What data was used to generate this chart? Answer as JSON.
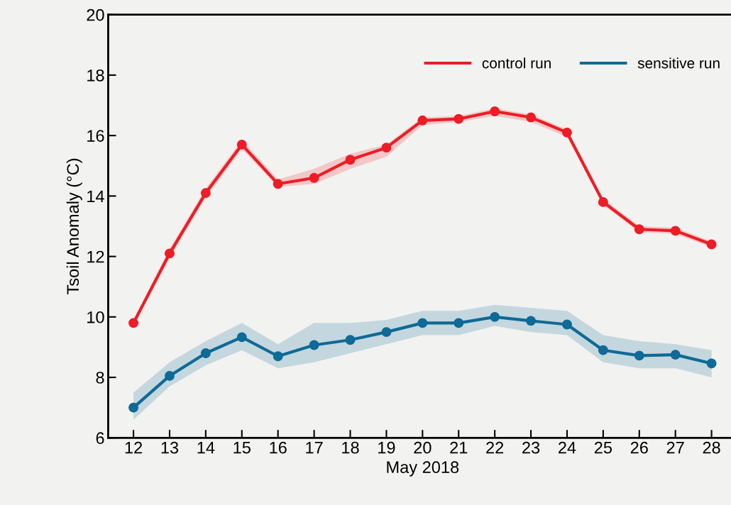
{
  "chart_data": {
    "type": "line",
    "xlabel": "May 2018",
    "ylabel": "Tsoil Anomaly (°C)",
    "categories": [
      "12",
      "13",
      "14",
      "15",
      "16",
      "17",
      "18",
      "19",
      "20",
      "21",
      "22",
      "23",
      "24",
      "25",
      "26",
      "27",
      "28"
    ],
    "series": [
      {
        "name": "control run",
        "color": "#ee1c25",
        "values": [
          9.8,
          12.1,
          14.1,
          15.7,
          14.4,
          14.6,
          15.2,
          15.6,
          16.5,
          16.55,
          16.8,
          16.6,
          16.1,
          13.8,
          12.9,
          12.85,
          12.4
        ],
        "lower": [
          9.7,
          11.95,
          13.95,
          15.55,
          14.3,
          14.4,
          14.9,
          15.3,
          16.35,
          16.45,
          16.65,
          16.45,
          15.95,
          13.7,
          12.8,
          12.75,
          12.3
        ],
        "upper": [
          9.9,
          12.25,
          14.25,
          15.85,
          14.55,
          14.9,
          15.4,
          15.7,
          16.6,
          16.65,
          16.9,
          16.7,
          16.2,
          13.9,
          13.0,
          12.95,
          12.5
        ]
      },
      {
        "name": "sensitive run",
        "color": "#0e6a96",
        "values": [
          7.0,
          8.05,
          8.8,
          9.33,
          8.7,
          9.07,
          9.24,
          9.5,
          9.8,
          9.8,
          10.0,
          9.87,
          9.75,
          8.9,
          8.72,
          8.75,
          8.46
        ],
        "lower": [
          6.6,
          7.7,
          8.4,
          8.9,
          8.3,
          8.5,
          8.8,
          9.1,
          9.4,
          9.4,
          9.7,
          9.5,
          9.4,
          8.5,
          8.3,
          8.3,
          8.0
        ],
        "upper": [
          7.5,
          8.5,
          9.2,
          9.8,
          9.1,
          9.8,
          9.8,
          9.9,
          10.2,
          10.2,
          10.4,
          10.3,
          10.2,
          9.4,
          9.2,
          9.1,
          8.9
        ]
      }
    ],
    "ylim": [
      6,
      20
    ],
    "yticks": [
      6,
      8,
      10,
      12,
      14,
      16,
      18,
      20
    ],
    "grid": false,
    "legend": "top right",
    "marker": "circle",
    "line_style": "solid"
  }
}
